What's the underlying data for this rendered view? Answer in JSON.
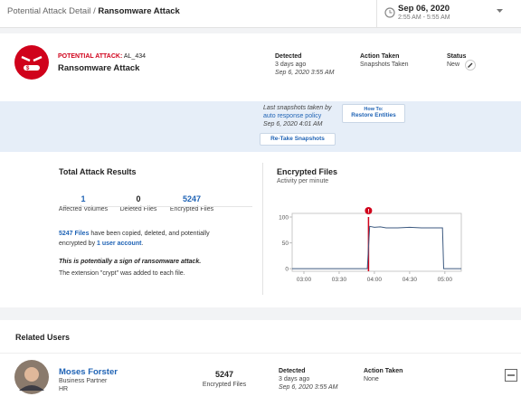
{
  "breadcrumb": {
    "parent": "Potential Attack Detail",
    "separator": "/",
    "current": "Ransomware Attack"
  },
  "date_range": {
    "date": "Sep 06, 2020",
    "time": "2:55 AM - 5:55 AM"
  },
  "attack": {
    "label": "POTENTIAL ATTACK:",
    "id": "AL_434",
    "name": "Ransomware Attack",
    "detected_label": "Detected",
    "detected_ago": "3 days ago",
    "detected_time": "Sep 6, 2020 3:55 AM",
    "action_label": "Action Taken",
    "action": "Snapshots Taken",
    "status_label": "Status",
    "status": "New"
  },
  "snapshot": {
    "text": "Last snapshots taken by",
    "policy": "auto response policy",
    "time": "Sep 6, 2020 4:01 AM",
    "retake_button": "Re-Take Snapshots",
    "howto_label": "How To:",
    "howto_title": "Restore Entities"
  },
  "results": {
    "title": "Total Attack Results",
    "stats": [
      {
        "value": 1,
        "label": "Affected Volumes"
      },
      {
        "value": 0,
        "label": "Deleted Files"
      },
      {
        "value": 5247,
        "label": "Encrypted Files"
      }
    ],
    "summary": [
      "5247 Files",
      " have been copied, deleted, and potentially encrypted by ",
      "1 user account",
      "."
    ],
    "warning": "This is potentially a sign of ransomware attack.",
    "note": "The extension \"crypt\" was added to each file."
  },
  "chart": {
    "type": "line",
    "title": "Encrypted Files",
    "subtitle": "Activity per minute",
    "x": [
      170,
      234,
      236,
      240,
      245,
      250,
      260,
      270,
      280,
      290,
      298,
      299,
      314
    ],
    "values": [
      0,
      0,
      82,
      80,
      81,
      79,
      79,
      80,
      79,
      79,
      79,
      0,
      0
    ],
    "color": "#3d5a80",
    "alert_marker": {
      "x": 235,
      "value": 100,
      "label": "!",
      "color": "#d0021b"
    },
    "xlim": [
      170,
      314
    ],
    "xticks": [
      {
        "value": 180,
        "label": "03:00"
      },
      {
        "value": 210,
        "label": "03:30"
      },
      {
        "value": 240,
        "label": "04:00"
      },
      {
        "value": 270,
        "label": "04:30"
      },
      {
        "value": 300,
        "label": "05:00"
      }
    ],
    "ylim": [
      -5,
      107
    ],
    "yticks": [
      0,
      50,
      100
    ]
  },
  "related_users": {
    "title": "Related Users",
    "users": [
      {
        "name": "Moses Forster",
        "role": "Business Partner",
        "department": "HR",
        "encrypted_value": 5247,
        "encrypted_label": "Encrypted Files",
        "detected_label": "Detected",
        "detected_ago": "3 days ago",
        "detected_time": "Sep 6, 2020 3:55 AM",
        "action_label": "Action Taken",
        "action": "None"
      }
    ]
  }
}
